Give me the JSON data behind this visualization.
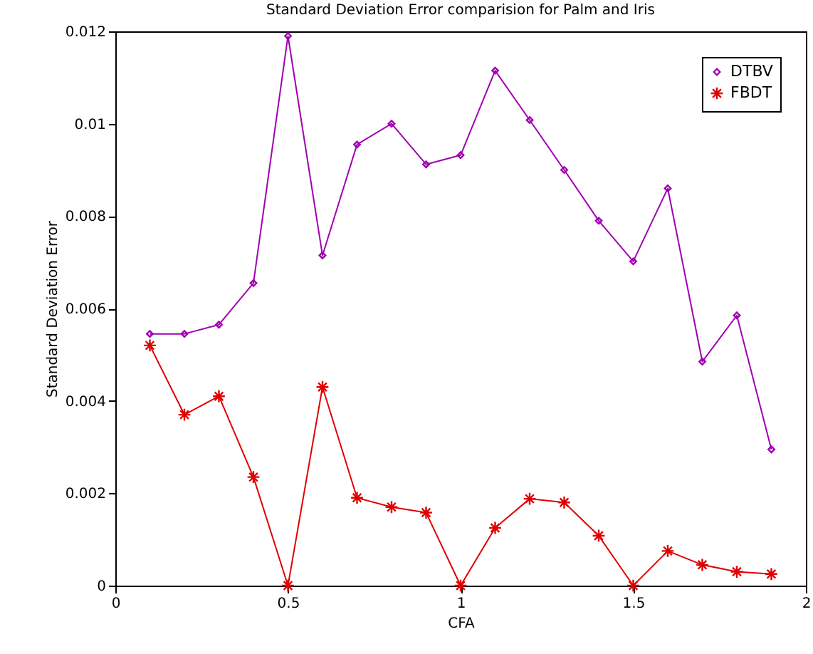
{
  "chart_data": {
    "type": "line",
    "title": "Standard Deviation Error comparision for Palm and Iris",
    "xlabel": "CFA",
    "ylabel": "Standard Deviation Error",
    "x": [
      0.1,
      0.2,
      0.3,
      0.4,
      0.5,
      0.6,
      0.7,
      0.8,
      0.9,
      1.0,
      1.1,
      1.2,
      1.3,
      1.4,
      1.5,
      1.6,
      1.7,
      1.8,
      1.9
    ],
    "series": [
      {
        "name": "DTBV",
        "color": "#a000b0",
        "marker": "diamond",
        "values": [
          0.00545,
          0.00545,
          0.00565,
          0.00655,
          0.0119,
          0.00715,
          0.00955,
          0.01,
          0.00912,
          0.00932,
          0.01115,
          0.01008,
          0.009,
          0.0079,
          0.00702,
          0.0086,
          0.00485,
          0.00585,
          0.00295
        ]
      },
      {
        "name": "FBDT",
        "color": "#e00000",
        "marker": "cross",
        "values": [
          0.0052,
          0.0037,
          0.0041,
          0.00235,
          0,
          0.0043,
          0.0019,
          0.0017,
          0.00158,
          0,
          0.00125,
          0.00188,
          0.0018,
          0.00108,
          0,
          0.00075,
          0.00045,
          0.0003,
          0.00025
        ]
      }
    ],
    "xlim": [
      0,
      2
    ],
    "xticks": [
      0,
      0.5,
      1,
      1.5,
      2
    ],
    "ylim": [
      0,
      0.012
    ],
    "yticks": [
      0,
      0.002,
      0.004,
      0.006,
      0.008,
      0.01,
      0.012
    ],
    "legend": "top right",
    "grid": false,
    "line_style": "solid"
  }
}
